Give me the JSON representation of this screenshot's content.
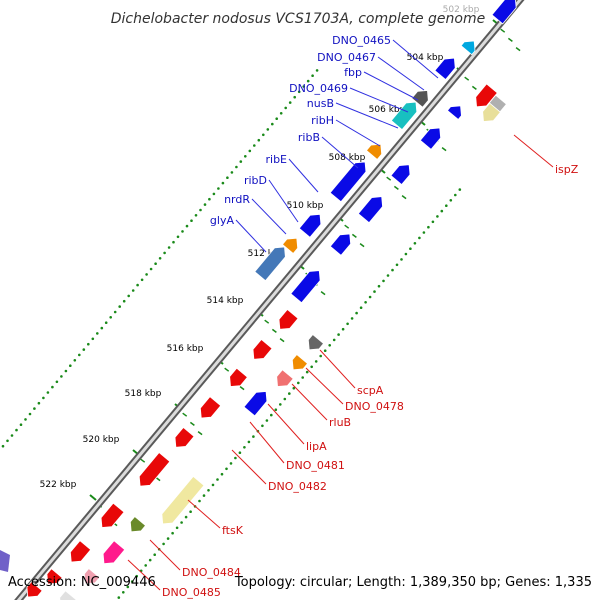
{
  "title": "Dichelobacter nodosus VCS1703A, complete genome",
  "footer": {
    "accession": "Accession: NC_009446",
    "summary": "Topology: circular; Length: 1,389,350 bp; Genes: 1,335"
  },
  "ruler": {
    "unit": "kbp",
    "ticks": [
      {
        "label": "502 kbp",
        "faint": true
      },
      {
        "label": "504 kbp"
      },
      {
        "label": "506 kbp"
      },
      {
        "label": "508 kbp"
      },
      {
        "label": "510 kbp"
      },
      {
        "label": "512 kbp"
      },
      {
        "label": "514 kbp"
      },
      {
        "label": "516 kbp"
      },
      {
        "label": "518 kbp"
      },
      {
        "label": "520 kbp"
      },
      {
        "label": "522 kbp"
      }
    ]
  },
  "colors": {
    "forward_strand": "#0a0ae6",
    "reverse_strand": "#e80808",
    "label_forward": "#1010c0",
    "label_reverse": "#d01010",
    "backbone": "#999999",
    "gc_dots": "#1a8a1a"
  },
  "labels_forward": [
    "DNO_0465",
    "DNO_0467",
    "fbp",
    "DNO_0469",
    "nusB",
    "ribH",
    "ribB",
    "ribE",
    "ribD",
    "nrdR",
    "glyA"
  ],
  "labels_reverse": [
    "ispZ",
    "scpA",
    "DNO_0478",
    "rluB",
    "lipA",
    "DNO_0481",
    "DNO_0482",
    "ftsK",
    "DNO_0484",
    "DNO_0485"
  ]
}
